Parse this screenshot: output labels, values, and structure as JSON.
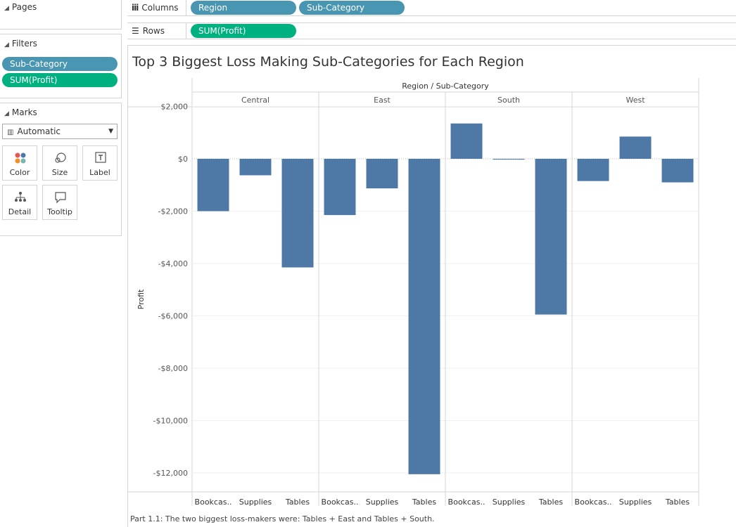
{
  "pages": {
    "title": "Pages"
  },
  "filters": {
    "title": "Filters",
    "items": [
      "Sub-Category",
      "SUM(Profit)"
    ]
  },
  "marks": {
    "title": "Marks",
    "type": "Automatic",
    "buttons": [
      {
        "label": "Color",
        "icon": "color-icon"
      },
      {
        "label": "Size",
        "icon": "size-icon"
      },
      {
        "label": "Label",
        "icon": "label-icon"
      },
      {
        "label": "Detail",
        "icon": "detail-icon"
      },
      {
        "label": "Tooltip",
        "icon": "tooltip-icon"
      }
    ]
  },
  "shelves": {
    "columns_label": "Columns",
    "columns_pills": [
      "Region",
      "Sub-Category"
    ],
    "rows_label": "Rows",
    "rows_pills": [
      "SUM(Profit)"
    ]
  },
  "chart_data": {
    "type": "bar",
    "title": "Top 3 Biggest Loss Making Sub-Categories for Each Region",
    "column_header": "Region / Sub-Category",
    "ylabel": "Profit",
    "ylim": [
      -12500,
      2500
    ],
    "yticks": [
      2000,
      0,
      -2000,
      -4000,
      -6000,
      -8000,
      -10000,
      -12000
    ],
    "ytick_labels": [
      "$2,000",
      "$0",
      "-$2,000",
      "-$4,000",
      "-$6,000",
      "-$8,000",
      "-$10,000",
      "-$12,000"
    ],
    "bar_color": "#4e79a7",
    "panes": [
      {
        "region": "Central",
        "categories": [
          "Bookcas..",
          "Supplies",
          "Tables"
        ],
        "values": [
          -2000,
          -630,
          -4150
        ]
      },
      {
        "region": "East",
        "categories": [
          "Bookcas..",
          "Supplies",
          "Tables"
        ],
        "values": [
          -2150,
          -1130,
          -12050
        ]
      },
      {
        "region": "South",
        "categories": [
          "Bookcas..",
          "Supplies",
          "Tables"
        ],
        "values": [
          1350,
          -30,
          -5950
        ]
      },
      {
        "region": "West",
        "categories": [
          "Bookcas..",
          "Supplies",
          "Tables"
        ],
        "values": [
          -850,
          850,
          -900
        ]
      }
    ]
  },
  "caption": "Part 1.1: The two biggest loss-makers were: Tables + East and Tables + South."
}
